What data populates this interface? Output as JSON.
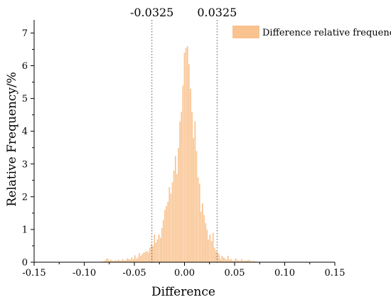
{
  "chart_data": {
    "type": "bar",
    "xlabel": "Difference",
    "ylabel": "Relative Frequency/%",
    "xlim": [
      -0.15,
      0.15
    ],
    "ylim": [
      0,
      7.4
    ],
    "x_ticks": [
      -0.15,
      -0.1,
      -0.05,
      0.0,
      0.05,
      0.1,
      0.15
    ],
    "x_tick_labels": [
      "-0.15",
      "-0.10",
      "-0.05",
      "0.00",
      "0.05",
      "0.10",
      "0.15"
    ],
    "y_ticks": [
      0,
      1,
      2,
      3,
      4,
      5,
      6,
      7
    ],
    "y_tick_labels": [
      "0",
      "1",
      "2",
      "3",
      "4",
      "5",
      "6",
      "7"
    ],
    "bin_width": 0.0015,
    "series": [
      {
        "name": "Difference relative frequency",
        "color": "#f9c28e",
        "x": [
          -0.0825,
          -0.081,
          -0.0795,
          -0.078,
          -0.0765,
          -0.075,
          -0.0735,
          -0.072,
          -0.0705,
          -0.069,
          -0.0675,
          -0.066,
          -0.0645,
          -0.063,
          -0.0615,
          -0.06,
          -0.0585,
          -0.057,
          -0.0555,
          -0.054,
          -0.0525,
          -0.051,
          -0.0495,
          -0.048,
          -0.0465,
          -0.045,
          -0.0435,
          -0.042,
          -0.0405,
          -0.039,
          -0.0375,
          -0.036,
          -0.0345,
          -0.033,
          -0.0315,
          -0.03,
          -0.0285,
          -0.027,
          -0.0255,
          -0.024,
          -0.0225,
          -0.021,
          -0.0195,
          -0.018,
          -0.0165,
          -0.015,
          -0.0135,
          -0.012,
          -0.0105,
          -0.009,
          -0.0075,
          -0.006,
          -0.0045,
          -0.003,
          -0.0015,
          0.0,
          0.0015,
          0.003,
          0.0045,
          0.006,
          0.0075,
          0.009,
          0.0105,
          0.012,
          0.0135,
          0.015,
          0.0165,
          0.018,
          0.0195,
          0.021,
          0.0225,
          0.024,
          0.0255,
          0.027,
          0.0285,
          0.03,
          0.0315,
          0.033,
          0.0345,
          0.036,
          0.0375,
          0.039,
          0.0405,
          0.042,
          0.0435,
          0.045,
          0.0465,
          0.048,
          0.0495,
          0.051,
          0.0525,
          0.054,
          0.0555,
          0.057,
          0.0585,
          0.06,
          0.0615,
          0.063,
          0.0645,
          0.066,
          0.0675,
          0.069,
          0.0705,
          0.072
        ],
        "values": [
          0.03,
          0.03,
          0.05,
          0.1,
          0.12,
          0.05,
          0.08,
          0.05,
          0.04,
          0.06,
          0.05,
          0.08,
          0.06,
          0.05,
          0.1,
          0.05,
          0.07,
          0.12,
          0.1,
          0.08,
          0.15,
          0.1,
          0.22,
          0.12,
          0.15,
          0.28,
          0.2,
          0.25,
          0.3,
          0.32,
          0.35,
          0.3,
          0.45,
          0.55,
          0.5,
          0.85,
          0.6,
          0.7,
          0.85,
          0.75,
          1.05,
          1.3,
          1.6,
          1.72,
          1.85,
          2.3,
          2.1,
          2.45,
          2.8,
          3.25,
          2.7,
          3.5,
          4.3,
          4.6,
          5.4,
          6.4,
          6.55,
          6.6,
          6.05,
          5.3,
          4.6,
          3.8,
          4.3,
          3.4,
          2.6,
          2.4,
          1.55,
          1.8,
          1.45,
          1.2,
          1.0,
          0.7,
          0.85,
          0.65,
          0.9,
          0.45,
          0.35,
          0.3,
          0.25,
          0.1,
          0.2,
          0.15,
          0.12,
          0.08,
          0.2,
          0.08,
          0.1,
          0.05,
          0.05,
          0.12,
          0.08,
          0.05,
          0.05,
          0.1,
          0.05,
          0.05,
          0.05,
          0.06,
          0.08,
          0.05,
          0.03,
          0.05,
          0.03,
          0.03
        ]
      }
    ],
    "annotations": [
      {
        "x": -0.0325,
        "label": "-0.0325",
        "style": "dotted-vertical"
      },
      {
        "x": 0.0325,
        "label": "0.0325",
        "style": "dotted-vertical"
      }
    ],
    "legend": {
      "position": "top-right"
    },
    "grid": false
  }
}
